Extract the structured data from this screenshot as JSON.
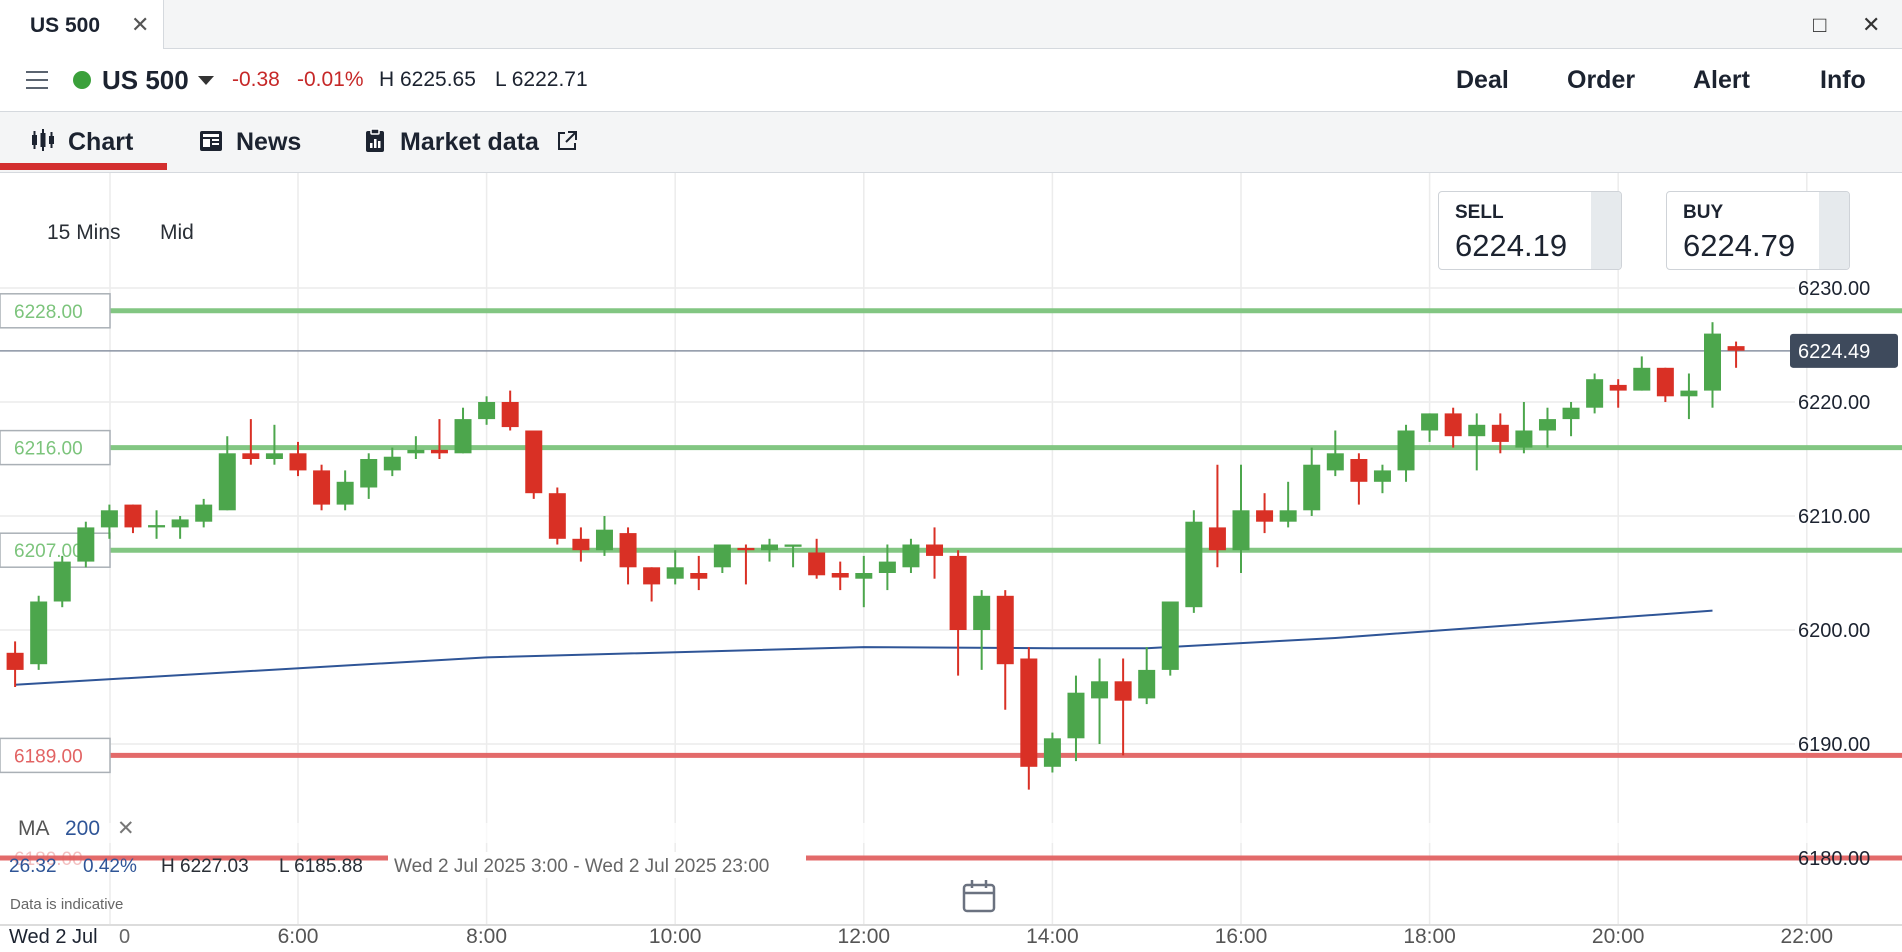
{
  "window": {
    "tab_title": "US 500",
    "close_glyph": "✕",
    "maximize_glyph": "□",
    "window_close_glyph": "✕"
  },
  "header": {
    "instrument": "US 500",
    "change": "-0.38",
    "change_pct": "-0.01%",
    "high": "H 6225.65",
    "low": "L 6222.71",
    "menu": [
      "Deal",
      "Order",
      "Alert",
      "Info"
    ],
    "status_color": "#3aa03a"
  },
  "tabs": [
    {
      "label": "Chart",
      "icon": "candles-icon",
      "active": true
    },
    {
      "label": "News",
      "icon": "newspaper-icon"
    },
    {
      "label": "Market data",
      "icon": "clipboard-icon",
      "external_icon": "external-link-icon"
    }
  ],
  "chart": {
    "interval": "15 Mins",
    "price_type": "Mid",
    "sell_label": "SELL",
    "sell_price": "6224.19",
    "buy_label": "BUY",
    "buy_price": "6224.79",
    "current_price_label": "6224.49",
    "ma_label": "MA",
    "ma_period": "200",
    "ma_close_glyph": "✕",
    "summary_change": "26.32",
    "summary_pct": "0.42%",
    "summary_high": "H 6227.03",
    "summary_low": "L 6185.88",
    "summary_range": "Wed 2 Jul 2025 3:00 - Wed 2 Jul 2025 23:00",
    "disclaimer": "Data is indicative",
    "date_label": "Wed 2 Jul",
    "first_tick": "0",
    "colors": {
      "up": "#4ca64c",
      "down": "#d93025",
      "ma": "#2f5597",
      "level_green": "#7cc47c",
      "level_red": "#e26363"
    }
  },
  "chart_data": {
    "type": "candlestick",
    "y_tick_labels": [
      "6230.00",
      "6220.00",
      "6210.00",
      "6200.00",
      "6190.00",
      "6180.00"
    ],
    "x_tick_labels": [
      "6:00",
      "8:00",
      "10:00",
      "12:00",
      "14:00",
      "16:00",
      "18:00",
      "20:00",
      "22:00"
    ],
    "x_values_hours": [
      6,
      8,
      10,
      12,
      14,
      16,
      18,
      20,
      22
    ],
    "ylim": [
      6175,
      6233
    ],
    "xlim_hours": [
      4.83,
      22.9
    ],
    "current_price": 6224.49,
    "levels": [
      {
        "value": 6228.0,
        "label": "6228.00",
        "color": "green"
      },
      {
        "value": 6216.0,
        "label": "6216.00",
        "color": "green"
      },
      {
        "value": 6207.0,
        "label": "6207.00",
        "color": "green"
      },
      {
        "value": 6189.0,
        "label": "6189.00",
        "color": "red"
      },
      {
        "value": 6180.0,
        "label": "6180.00",
        "color": "red"
      }
    ],
    "ma_period": 200,
    "ma": {
      "t": [
        3.0,
        8.0,
        12.0,
        14.0,
        15.0,
        17.0,
        21.0
      ],
      "v": [
        6195.2,
        6197.6,
        6198.5,
        6198.4,
        6198.4,
        6199.3,
        6201.7
      ]
    },
    "candles": [
      {
        "t": 3.0,
        "o": 6198.0,
        "h": 6199.0,
        "l": 6195.0,
        "c": 6196.5
      },
      {
        "t": 3.25,
        "o": 6197.0,
        "h": 6203.0,
        "l": 6196.5,
        "c": 6202.5
      },
      {
        "t": 3.5,
        "o": 6202.5,
        "h": 6206.5,
        "l": 6202.0,
        "c": 6206.0
      },
      {
        "t": 3.75,
        "o": 6206.0,
        "h": 6209.5,
        "l": 6205.5,
        "c": 6209.0
      },
      {
        "t": 4.0,
        "o": 6209.0,
        "h": 6211.0,
        "l": 6208.0,
        "c": 6210.5
      },
      {
        "t": 4.25,
        "o": 6211.0,
        "h": 6211.0,
        "l": 6208.5,
        "c": 6209.0
      },
      {
        "t": 4.5,
        "o": 6209.0,
        "h": 6210.5,
        "l": 6208.0,
        "c": 6209.2
      },
      {
        "t": 4.75,
        "o": 6209.0,
        "h": 6210.0,
        "l": 6208.0,
        "c": 6209.7
      },
      {
        "t": 5.0,
        "o": 6209.5,
        "h": 6211.5,
        "l": 6209.0,
        "c": 6211.0
      },
      {
        "t": 5.25,
        "o": 6210.5,
        "h": 6217.0,
        "l": 6210.5,
        "c": 6215.5
      },
      {
        "t": 5.5,
        "o": 6215.5,
        "h": 6218.5,
        "l": 6214.5,
        "c": 6215.0
      },
      {
        "t": 5.75,
        "o": 6215.0,
        "h": 6218.0,
        "l": 6214.5,
        "c": 6215.5
      },
      {
        "t": 6.0,
        "o": 6215.5,
        "h": 6216.5,
        "l": 6213.5,
        "c": 6214.0
      },
      {
        "t": 6.25,
        "o": 6214.0,
        "h": 6214.5,
        "l": 6210.5,
        "c": 6211.0
      },
      {
        "t": 6.5,
        "o": 6211.0,
        "h": 6214.0,
        "l": 6210.5,
        "c": 6213.0
      },
      {
        "t": 6.75,
        "o": 6212.5,
        "h": 6215.5,
        "l": 6211.5,
        "c": 6215.0
      },
      {
        "t": 7.0,
        "o": 6214.0,
        "h": 6216.0,
        "l": 6213.5,
        "c": 6215.2
      },
      {
        "t": 7.25,
        "o": 6215.5,
        "h": 6217.0,
        "l": 6215.0,
        "c": 6215.8
      },
      {
        "t": 7.5,
        "o": 6215.8,
        "h": 6218.5,
        "l": 6215.0,
        "c": 6215.5
      },
      {
        "t": 7.75,
        "o": 6215.5,
        "h": 6219.5,
        "l": 6215.5,
        "c": 6218.5
      },
      {
        "t": 8.0,
        "o": 6218.5,
        "h": 6220.5,
        "l": 6218.0,
        "c": 6220.0
      },
      {
        "t": 8.25,
        "o": 6220.0,
        "h": 6221.0,
        "l": 6217.5,
        "c": 6217.8
      },
      {
        "t": 8.5,
        "o": 6217.5,
        "h": 6217.5,
        "l": 6211.5,
        "c": 6212.0
      },
      {
        "t": 8.75,
        "o": 6212.0,
        "h": 6212.5,
        "l": 6207.5,
        "c": 6208.0
      },
      {
        "t": 9.0,
        "o": 6208.0,
        "h": 6209.0,
        "l": 6206.0,
        "c": 6207.0
      },
      {
        "t": 9.25,
        "o": 6207.0,
        "h": 6210.0,
        "l": 6206.5,
        "c": 6208.8
      },
      {
        "t": 9.5,
        "o": 6208.5,
        "h": 6209.0,
        "l": 6204.0,
        "c": 6205.5
      },
      {
        "t": 9.75,
        "o": 6205.5,
        "h": 6205.5,
        "l": 6202.5,
        "c": 6204.0
      },
      {
        "t": 10.0,
        "o": 6204.5,
        "h": 6207.0,
        "l": 6204.0,
        "c": 6205.5
      },
      {
        "t": 10.25,
        "o": 6205.0,
        "h": 6206.5,
        "l": 6203.5,
        "c": 6204.5
      },
      {
        "t": 10.5,
        "o": 6205.5,
        "h": 6207.5,
        "l": 6205.0,
        "c": 6207.5
      },
      {
        "t": 10.75,
        "o": 6207.2,
        "h": 6207.5,
        "l": 6204.0,
        "c": 6207.0
      },
      {
        "t": 11.0,
        "o": 6207.0,
        "h": 6208.0,
        "l": 6206.0,
        "c": 6207.5
      },
      {
        "t": 11.25,
        "o": 6207.3,
        "h": 6207.5,
        "l": 6205.5,
        "c": 6207.5
      },
      {
        "t": 11.5,
        "o": 6206.8,
        "h": 6208.0,
        "l": 6204.5,
        "c": 6204.8
      },
      {
        "t": 11.75,
        "o": 6205.0,
        "h": 6206.0,
        "l": 6203.5,
        "c": 6204.6
      },
      {
        "t": 12.0,
        "o": 6204.5,
        "h": 6206.5,
        "l": 6202.0,
        "c": 6205.0
      },
      {
        "t": 12.25,
        "o": 6205.0,
        "h": 6207.5,
        "l": 6203.5,
        "c": 6206.0
      },
      {
        "t": 12.5,
        "o": 6205.5,
        "h": 6208.0,
        "l": 6205.0,
        "c": 6207.5
      },
      {
        "t": 12.75,
        "o": 6207.5,
        "h": 6209.0,
        "l": 6204.5,
        "c": 6206.5
      },
      {
        "t": 13.0,
        "o": 6206.5,
        "h": 6207.0,
        "l": 6196.0,
        "c": 6200.0
      },
      {
        "t": 13.25,
        "o": 6200.0,
        "h": 6203.5,
        "l": 6196.5,
        "c": 6203.0
      },
      {
        "t": 13.5,
        "o": 6203.0,
        "h": 6203.5,
        "l": 6193.0,
        "c": 6197.0
      },
      {
        "t": 13.75,
        "o": 6197.5,
        "h": 6198.5,
        "l": 6186.0,
        "c": 6188.0
      },
      {
        "t": 14.0,
        "o": 6188.0,
        "h": 6191.0,
        "l": 6187.5,
        "c": 6190.5
      },
      {
        "t": 14.25,
        "o": 6190.5,
        "h": 6196.0,
        "l": 6188.5,
        "c": 6194.5
      },
      {
        "t": 14.5,
        "o": 6194.0,
        "h": 6197.5,
        "l": 6190.0,
        "c": 6195.5
      },
      {
        "t": 14.75,
        "o": 6195.5,
        "h": 6197.5,
        "l": 6189.0,
        "c": 6193.8
      },
      {
        "t": 15.0,
        "o": 6194.0,
        "h": 6198.5,
        "l": 6193.5,
        "c": 6196.5
      },
      {
        "t": 15.25,
        "o": 6196.5,
        "h": 6202.5,
        "l": 6196.0,
        "c": 6202.5
      },
      {
        "t": 15.5,
        "o": 6202.0,
        "h": 6210.5,
        "l": 6201.5,
        "c": 6209.5
      },
      {
        "t": 15.75,
        "o": 6209.0,
        "h": 6214.5,
        "l": 6205.5,
        "c": 6207.0
      },
      {
        "t": 16.0,
        "o": 6207.0,
        "h": 6214.5,
        "l": 6205.0,
        "c": 6210.5
      },
      {
        "t": 16.25,
        "o": 6210.5,
        "h": 6212.0,
        "l": 6208.5,
        "c": 6209.5
      },
      {
        "t": 16.5,
        "o": 6209.5,
        "h": 6213.0,
        "l": 6209.0,
        "c": 6210.5
      },
      {
        "t": 16.75,
        "o": 6210.5,
        "h": 6216.0,
        "l": 6210.0,
        "c": 6214.5
      },
      {
        "t": 17.0,
        "o": 6214.0,
        "h": 6217.5,
        "l": 6213.5,
        "c": 6215.5
      },
      {
        "t": 17.25,
        "o": 6215.0,
        "h": 6215.5,
        "l": 6211.0,
        "c": 6213.0
      },
      {
        "t": 17.5,
        "o": 6213.0,
        "h": 6214.5,
        "l": 6212.0,
        "c": 6214.0
      },
      {
        "t": 17.75,
        "o": 6214.0,
        "h": 6218.0,
        "l": 6213.0,
        "c": 6217.5
      },
      {
        "t": 18.0,
        "o": 6217.5,
        "h": 6219.0,
        "l": 6216.5,
        "c": 6219.0
      },
      {
        "t": 18.25,
        "o": 6219.0,
        "h": 6219.5,
        "l": 6216.0,
        "c": 6217.0
      },
      {
        "t": 18.5,
        "o": 6217.0,
        "h": 6219.0,
        "l": 6214.0,
        "c": 6218.0
      },
      {
        "t": 18.75,
        "o": 6218.0,
        "h": 6219.0,
        "l": 6215.5,
        "c": 6216.5
      },
      {
        "t": 19.0,
        "o": 6216.0,
        "h": 6220.0,
        "l": 6215.5,
        "c": 6217.5
      },
      {
        "t": 19.25,
        "o": 6217.5,
        "h": 6219.5,
        "l": 6216.0,
        "c": 6218.5
      },
      {
        "t": 19.5,
        "o": 6218.5,
        "h": 6220.0,
        "l": 6217.0,
        "c": 6219.5
      },
      {
        "t": 19.75,
        "o": 6219.5,
        "h": 6222.5,
        "l": 6219.0,
        "c": 6222.0
      },
      {
        "t": 20.0,
        "o": 6221.5,
        "h": 6222.0,
        "l": 6219.5,
        "c": 6221.0
      },
      {
        "t": 20.25,
        "o": 6221.0,
        "h": 6224.0,
        "l": 6221.0,
        "c": 6223.0
      },
      {
        "t": 20.5,
        "o": 6223.0,
        "h": 6223.0,
        "l": 6220.0,
        "c": 6220.5
      },
      {
        "t": 20.75,
        "o": 6220.5,
        "h": 6222.5,
        "l": 6218.5,
        "c": 6221.0
      },
      {
        "t": 21.0,
        "o": 6221.0,
        "h": 6227.0,
        "l": 6219.5,
        "c": 6226.0
      },
      {
        "t": 21.25,
        "o": 6224.9,
        "h": 6225.3,
        "l": 6223.0,
        "c": 6224.5
      }
    ]
  }
}
